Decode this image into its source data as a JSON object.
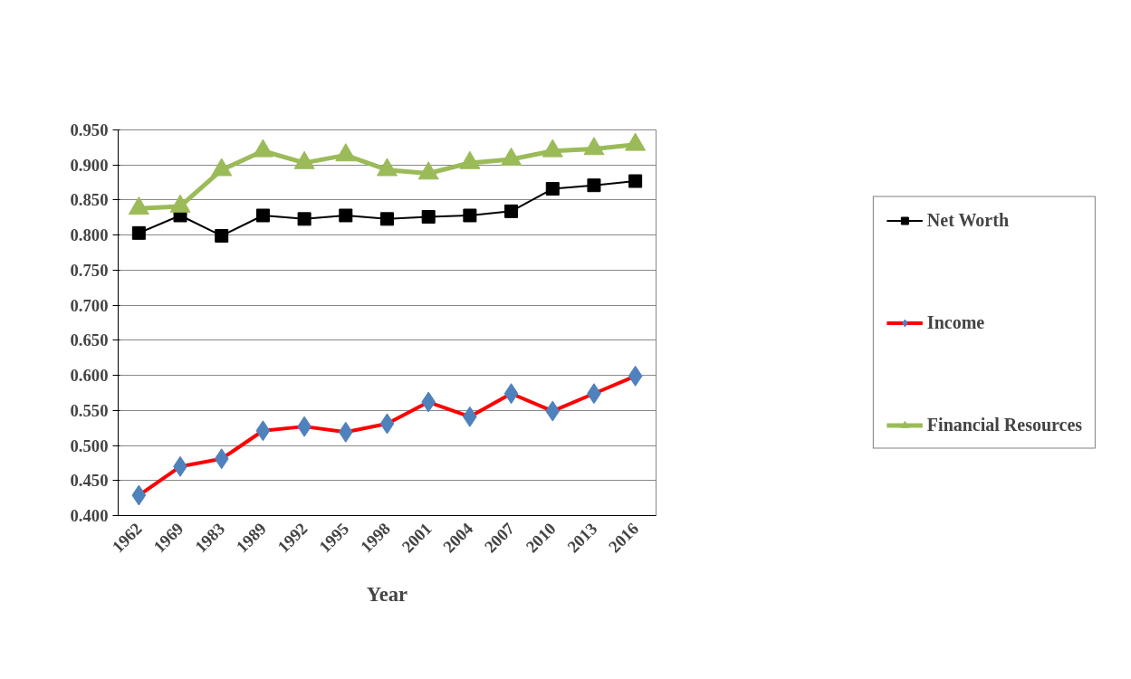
{
  "chart_data": {
    "type": "line",
    "xlabel": "Year",
    "categories": [
      "1962",
      "1969",
      "1983",
      "1989",
      "1992",
      "1995",
      "1998",
      "2001",
      "2004",
      "2007",
      "2010",
      "2013",
      "2016"
    ],
    "series": [
      {
        "name": "Net Worth",
        "color": "#000000",
        "marker": "square",
        "values": [
          0.803,
          0.828,
          0.799,
          0.828,
          0.823,
          0.828,
          0.823,
          0.826,
          0.828,
          0.834,
          0.866,
          0.871,
          0.877
        ]
      },
      {
        "name": "Income",
        "color": "#ff0000",
        "marker": "diamond",
        "values": [
          0.429,
          0.47,
          0.481,
          0.521,
          0.527,
          0.519,
          0.531,
          0.562,
          0.541,
          0.574,
          0.549,
          0.574,
          0.599
        ]
      },
      {
        "name": "Financial Resources",
        "color": "#9bbb59",
        "marker": "triangle",
        "values": [
          0.838,
          0.841,
          0.893,
          0.92,
          0.903,
          0.914,
          0.893,
          0.888,
          0.903,
          0.908,
          0.92,
          0.923,
          0.929
        ]
      }
    ],
    "ylim": [
      0.4,
      0.95
    ],
    "yticks": [
      {
        "value": 0.4,
        "label": "0.400"
      },
      {
        "value": 0.45,
        "label": "0.450"
      },
      {
        "value": 0.5,
        "label": "0.500"
      },
      {
        "value": 0.55,
        "label": "0.550"
      },
      {
        "value": 0.6,
        "label": "0.600"
      },
      {
        "value": 0.65,
        "label": "0.650"
      },
      {
        "value": 0.7,
        "label": "0.700"
      },
      {
        "value": 0.75,
        "label": "0.750"
      },
      {
        "value": 0.8,
        "label": "0.800"
      },
      {
        "value": 0.85,
        "label": "0.850"
      },
      {
        "value": 0.9,
        "label": "0.900"
      },
      {
        "value": 0.95,
        "label": "0.950"
      }
    ],
    "grid": "y",
    "legend": "right"
  }
}
